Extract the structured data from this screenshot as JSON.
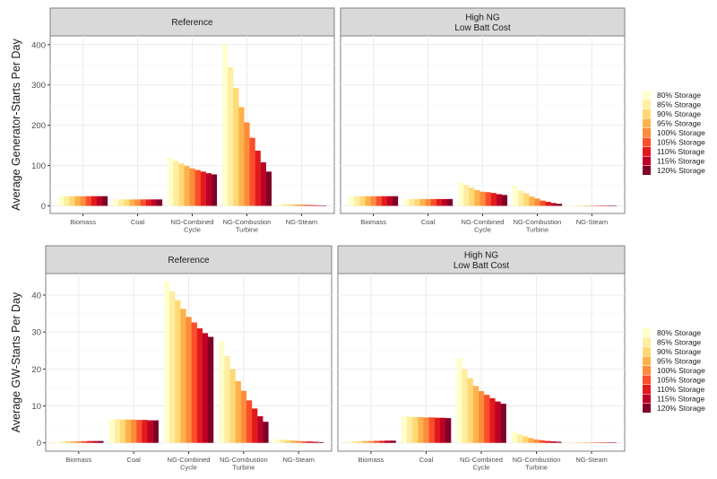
{
  "chart_data": [
    {
      "type": "bar",
      "ylabel": "Average Generator-Starts Per Day",
      "ylim": [
        -10,
        420
      ],
      "yticks": [
        0,
        100,
        200,
        300,
        400
      ],
      "grid": true,
      "legend_position": "right",
      "categories": [
        "Biomass",
        "Coal",
        "NG-Combined\nCycle",
        "NG-Combustion\nTurbine",
        "NG-Steam"
      ],
      "series_names": [
        "80% Storage",
        "85% Storage",
        "90% Storage",
        "95% Storage",
        "100% Storage",
        "105% Storage",
        "110% Storage",
        "115% Storage",
        "120% Storage"
      ],
      "colors": [
        "#FFFFCC",
        "#FFEDA0",
        "#FED976",
        "#FEB24C",
        "#FD8D3C",
        "#FC4E2A",
        "#E31A1C",
        "#BD0026",
        "#800026"
      ],
      "facets": [
        {
          "title": "Reference",
          "values": {
            "Biomass": [
              24,
              24,
              24,
              24,
              24,
              24,
              24,
              24,
              24
            ],
            "Coal": [
              16,
              16,
              16,
              16,
              16,
              16,
              16,
              16,
              16
            ],
            "NG-Combined\nCycle": [
              119,
              112,
              105,
              99,
              93,
              89,
              85,
              81,
              78
            ],
            "NG-Combustion\nTurbine": [
              400,
              344,
              293,
              245,
              207,
              169,
              137,
              108,
              85
            ],
            "NG-Steam": [
              5,
              4.5,
              4,
              3.5,
              3,
              2.5,
              2,
              1.5,
              1
            ]
          }
        },
        {
          "title": "High NG\nLow Batt Cost",
          "values": {
            "Biomass": [
              24,
              24,
              24,
              24,
              24,
              24,
              24,
              24,
              24
            ],
            "Coal": [
              17,
              17,
              17,
              17,
              17,
              17,
              17,
              17,
              17
            ],
            "NG-Combined\nCycle": [
              59,
              52,
              45,
              39,
              35,
              34,
              32,
              29,
              27
            ],
            "NG-Combustion\nTurbine": [
              50,
              38,
              31,
              23,
              18,
              13,
              10,
              7,
              5
            ],
            "NG-Steam": [
              0.5,
              0.5,
              0.5,
              0.5,
              0.5,
              0.5,
              0.5,
              0.5,
              0.5
            ]
          }
        }
      ]
    },
    {
      "type": "bar",
      "ylabel": "Average GW-Starts Per Day",
      "ylim": [
        -2,
        46
      ],
      "yticks": [
        0,
        10,
        20,
        30,
        40
      ],
      "grid": true,
      "legend_position": "right",
      "categories": [
        "Biomass",
        "Coal",
        "NG-Combined\nCycle",
        "NG-Combustion\nTurbine",
        "NG-Steam"
      ],
      "series_names": [
        "80% Storage",
        "85% Storage",
        "90% Storage",
        "95% Storage",
        "100% Storage",
        "105% Storage",
        "110% Storage",
        "115% Storage",
        "120% Storage"
      ],
      "colors": [
        "#FFFFCC",
        "#FFEDA0",
        "#FED976",
        "#FEB24C",
        "#FD8D3C",
        "#FC4E2A",
        "#E31A1C",
        "#BD0026",
        "#800026"
      ],
      "facets": [
        {
          "title": "Reference",
          "values": {
            "Biomass": [
              0.3,
              0.35,
              0.4,
              0.4,
              0.45,
              0.45,
              0.5,
              0.5,
              0.5
            ],
            "Coal": [
              6.4,
              6.4,
              6.3,
              6.3,
              6.3,
              6.2,
              6.2,
              6.1,
              6.1
            ],
            "NG-Combined\nCycle": [
              43.7,
              41.0,
              38.6,
              36.3,
              34.1,
              32.6,
              31.0,
              29.7,
              28.7
            ],
            "NG-Combustion\nTurbine": [
              27.6,
              23.5,
              20.0,
              16.7,
              14.1,
              11.5,
              9.3,
              7.2,
              5.7
            ],
            "NG-Steam": [
              1.0,
              0.9,
              0.7,
              0.6,
              0.5,
              0.4,
              0.4,
              0.3,
              0.2
            ]
          }
        },
        {
          "title": "High NG\nLow Batt Cost",
          "values": {
            "Biomass": [
              0.4,
              0.45,
              0.45,
              0.5,
              0.5,
              0.55,
              0.55,
              0.6,
              0.6
            ],
            "Coal": [
              7.3,
              7.1,
              7.0,
              7.0,
              6.9,
              6.9,
              6.8,
              6.8,
              6.7
            ],
            "NG-Combined\nCycle": [
              23.0,
              19.9,
              17.5,
              15.4,
              14.0,
              13.0,
              12.1,
              11.2,
              10.6
            ],
            "NG-Combustion\nTurbine": [
              2.9,
              2.3,
              1.8,
              1.3,
              0.9,
              0.7,
              0.5,
              0.4,
              0.3
            ],
            "NG-Steam": [
              0.1,
              0.1,
              0.1,
              0.1,
              0.1,
              0.1,
              0.1,
              0.1,
              0.1
            ]
          }
        }
      ]
    }
  ]
}
